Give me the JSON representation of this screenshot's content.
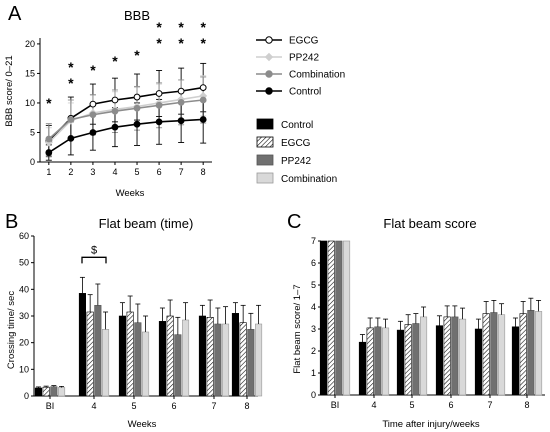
{
  "colors": {
    "control": "#000000",
    "pp242": "#707070",
    "combination": "#d9d9d9",
    "egcg_line": "#000000",
    "pp242_line": "#cfcfcf",
    "combination_line": "#8c8c8c",
    "star_blue": "#1f3fbf",
    "star_red": "#e8232a",
    "star_black": "#000000"
  },
  "chart_data": [
    {
      "panel": "A",
      "type": "line",
      "title": "BBB",
      "xlabel": "Weeks",
      "ylabel": "BBB score/ 0–21",
      "x": [
        1,
        2,
        3,
        4,
        5,
        6,
        7,
        8
      ],
      "xlim": [
        0.6,
        8.4
      ],
      "ylim": [
        0,
        21
      ],
      "yticks": [
        0,
        5,
        10,
        15,
        20
      ],
      "series": [
        {
          "name": "EGCG",
          "marker": "open-circle",
          "values": [
            3.6,
            7.4,
            9.8,
            10.5,
            11.0,
            11.6,
            12.0,
            12.6
          ],
          "errors": [
            2.6,
            3.6,
            3.4,
            3.7,
            3.9,
            3.9,
            3.9,
            4.1
          ]
        },
        {
          "name": "PP242",
          "marker": "diamond",
          "values": [
            3.3,
            7.0,
            8.3,
            8.9,
            9.4,
            10.0,
            10.6,
            11.2
          ],
          "errors": [
            2.5,
            3.0,
            3.0,
            3.0,
            3.2,
            3.2,
            3.3,
            3.4
          ]
        },
        {
          "name": "Combination",
          "marker": "filled-circle",
          "values": [
            3.9,
            7.2,
            8.0,
            8.6,
            9.1,
            9.6,
            10.1,
            10.5
          ],
          "errors": [
            2.6,
            3.3,
            3.4,
            3.6,
            3.7,
            3.8,
            3.8,
            3.9
          ]
        },
        {
          "name": "Control",
          "marker": "filled-circle",
          "values": [
            1.6,
            4.0,
            5.0,
            5.9,
            6.4,
            6.8,
            7.0,
            7.2
          ],
          "errors": [
            1.3,
            2.8,
            3.0,
            3.3,
            3.6,
            3.8,
            3.7,
            4.0
          ]
        }
      ],
      "significance": [
        {
          "x": 1,
          "marks": [
            {
              "symbol": "*",
              "color": "star_blue"
            }
          ]
        },
        {
          "x": 2,
          "marks": [
            {
              "symbol": "*",
              "color": "star_blue"
            },
            {
              "symbol": "*",
              "color": "star_black"
            }
          ]
        },
        {
          "x": 3,
          "marks": [
            {
              "symbol": "*",
              "color": "star_black"
            }
          ]
        },
        {
          "x": 4,
          "marks": [
            {
              "symbol": "*",
              "color": "star_black"
            }
          ]
        },
        {
          "x": 5,
          "marks": [
            {
              "symbol": "*",
              "color": "star_black"
            }
          ]
        },
        {
          "x": 6,
          "marks": [
            {
              "symbol": "*",
              "color": "star_red"
            },
            {
              "symbol": "*",
              "color": "star_black"
            }
          ]
        },
        {
          "x": 7,
          "marks": [
            {
              "symbol": "*",
              "color": "star_red"
            },
            {
              "symbol": "*",
              "color": "star_black"
            }
          ]
        },
        {
          "x": 8,
          "marks": [
            {
              "symbol": "*",
              "color": "star_red"
            },
            {
              "symbol": "*",
              "color": "star_black"
            }
          ]
        }
      ],
      "legend": [
        "EGCG",
        "PP242",
        "Combination",
        "Control"
      ],
      "legend_position": "right"
    },
    {
      "panel": "B",
      "type": "bar",
      "title": "Flat beam (time)",
      "xlabel": "Weeks",
      "ylabel": "Crossing time/ sec",
      "categories": [
        "BI",
        "4",
        "5",
        "6",
        "7",
        "8"
      ],
      "ylim": [
        0,
        60
      ],
      "yticks": [
        0,
        10,
        20,
        30,
        40,
        50,
        60
      ],
      "series": [
        {
          "name": "Control",
          "values": [
            3.0,
            38.5,
            30.0,
            28.0,
            30.0,
            31.0
          ],
          "errors": [
            0.4,
            6.0,
            5.0,
            5.0,
            4.0,
            4.0
          ]
        },
        {
          "name": "EGCG",
          "values": [
            3.3,
            31.5,
            31.5,
            30.0,
            29.5,
            27.5
          ],
          "errors": [
            0.4,
            6.5,
            6.0,
            6.0,
            6.5,
            6.5
          ]
        },
        {
          "name": "PP242",
          "values": [
            3.5,
            34.0,
            27.5,
            23.0,
            27.0,
            25.0
          ],
          "errors": [
            0.4,
            8.0,
            7.0,
            6.5,
            6.0,
            6.0
          ]
        },
        {
          "name": "Combination",
          "values": [
            3.2,
            25.0,
            24.0,
            28.5,
            27.0,
            27.0
          ],
          "errors": [
            0.4,
            6.5,
            6.0,
            6.5,
            6.5,
            7.0
          ]
        }
      ],
      "annotation": {
        "symbol": "$",
        "category": "4",
        "between": [
          "Control",
          "Combination"
        ]
      }
    },
    {
      "panel": "C",
      "type": "bar",
      "title": "Flat beam score",
      "xlabel": "Time after injury/weeks",
      "ylabel": "Flat beam score/ 1–7",
      "categories": [
        "BI",
        "4",
        "5",
        "6",
        "7",
        "8"
      ],
      "ylim": [
        0,
        7
      ],
      "yticks": [
        0,
        1,
        2,
        3,
        4,
        5,
        6,
        7
      ],
      "series": [
        {
          "name": "Control",
          "values": [
            7.0,
            2.4,
            2.95,
            3.15,
            3.0,
            3.1
          ],
          "errors": [
            0,
            0.35,
            0.4,
            0.45,
            0.45,
            0.4
          ]
        },
        {
          "name": "EGCG",
          "values": [
            7.0,
            3.05,
            3.2,
            3.55,
            3.7,
            3.7
          ],
          "errors": [
            0,
            0.45,
            0.45,
            0.5,
            0.55,
            0.55
          ]
        },
        {
          "name": "PP242",
          "values": [
            7.0,
            3.1,
            3.25,
            3.55,
            3.75,
            3.85
          ],
          "errors": [
            0,
            0.4,
            0.45,
            0.5,
            0.55,
            0.55
          ]
        },
        {
          "name": "Combination",
          "values": [
            7.0,
            3.05,
            3.55,
            3.45,
            3.65,
            3.8
          ],
          "errors": [
            0,
            0.4,
            0.45,
            0.5,
            0.5,
            0.5
          ]
        }
      ]
    }
  ],
  "bar_legend": [
    "Control",
    "EGCG",
    "PP242",
    "Combination"
  ],
  "panels": {
    "a": "A",
    "b": "B",
    "c": "C"
  }
}
